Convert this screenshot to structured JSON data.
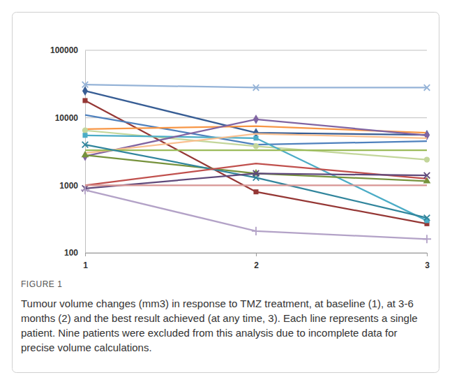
{
  "chart_data": {
    "type": "line",
    "title": "FIGURE 1",
    "subtitle": "Tumour volume changes (mm3) in response to TMZ treatment, at baseline (1), at 3-6 months (2) and the best result achieved (at any time, 3). Each line represents a single patient. Nine patients were excluded from this analysis due to incomplete data for precise volume calculations.",
    "x": [
      1,
      2,
      3
    ],
    "xlim": [
      1,
      3
    ],
    "xticks": [
      1,
      2,
      3
    ],
    "log": "y",
    "ylim": [
      100,
      100000
    ],
    "yticks": [
      100,
      1000,
      10000,
      100000
    ],
    "grid": true,
    "series": [
      {
        "color": "#95b3d7",
        "marker": "x",
        "values": [
          31000,
          28000,
          28000
        ]
      },
      {
        "color": "#375d94",
        "marker": "diamond",
        "values": [
          25000,
          6000,
          5600
        ]
      },
      {
        "color": "#953735",
        "marker": "square",
        "values": [
          18000,
          800,
          270
        ]
      },
      {
        "color": "#4f81bd",
        "marker": "none",
        "values": [
          11000,
          4000,
          4500
        ]
      },
      {
        "color": "#f79646",
        "marker": "none",
        "values": [
          6800,
          7500,
          6000
        ]
      },
      {
        "color": "#c3d69b",
        "marker": "circle",
        "values": [
          6500,
          3800,
          2400
        ]
      },
      {
        "color": "#4bacc6",
        "marker": "square",
        "values": [
          5500,
          5000,
          300
        ]
      },
      {
        "color": "#8064a2",
        "marker": "diamond",
        "values": [
          2700,
          9500,
          5500
        ]
      },
      {
        "color": "#fac090",
        "marker": "none",
        "values": [
          3000,
          5800,
          5000
        ]
      },
      {
        "color": "#9bbb59",
        "marker": "none",
        "values": [
          3300,
          3300,
          3300
        ]
      },
      {
        "color": "#76923c",
        "marker": "triangle",
        "values": [
          2800,
          1500,
          1150
        ]
      },
      {
        "color": "#31859c",
        "marker": "x",
        "values": [
          4000,
          1300,
          330
        ]
      },
      {
        "color": "#c0504d",
        "marker": "none",
        "values": [
          1000,
          2100,
          1250
        ]
      },
      {
        "color": "#5f497a",
        "marker": "x",
        "values": [
          900,
          1500,
          1400
        ]
      },
      {
        "color": "#d99694",
        "marker": "none",
        "values": [
          1000,
          1000,
          1000
        ]
      },
      {
        "color": "#b3a2c7",
        "marker": "plus",
        "values": [
          850,
          210,
          160
        ]
      }
    ]
  }
}
